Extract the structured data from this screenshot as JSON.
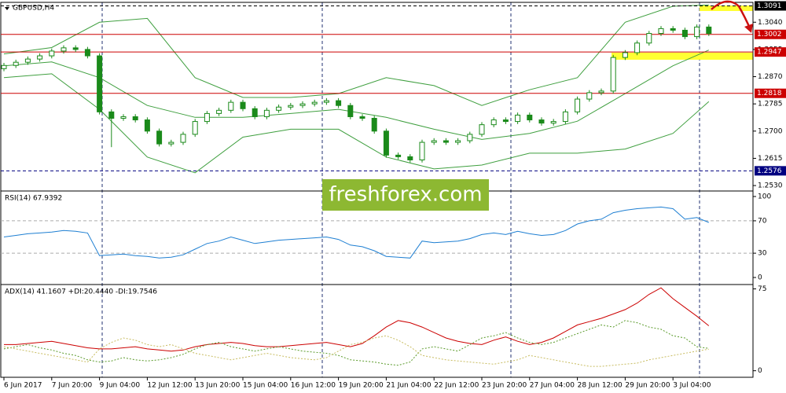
{
  "chart_data": [
    {
      "type": "candlestick",
      "title": "GBPUSD,H4",
      "categories": [
        "6 Jun 2017",
        null,
        null,
        null,
        "7 Jun 20:00",
        null,
        null,
        null,
        "9 Jun 04:00",
        null,
        null,
        null,
        "12 Jun 12:00",
        null,
        null,
        null,
        "13 Jun 20:00",
        null,
        null,
        null,
        "15 Jun 04:00",
        null,
        null,
        null,
        "16 Jun 12:00",
        null,
        null,
        null,
        "19 Jun 20:00",
        null,
        null,
        null,
        "21 Jun 04:00",
        null,
        null,
        null,
        "22 Jun 12:00",
        null,
        null,
        null,
        "23 Jun 20:00",
        null,
        null,
        null,
        "27 Jun 04:00",
        null,
        null,
        null,
        "28 Jun 12:00",
        null,
        null,
        null,
        "29 Jun 20:00",
        null,
        null,
        null,
        "3 Jul 04:00",
        null,
        null,
        null
      ],
      "open": [
        1.2895,
        1.2905,
        1.2915,
        1.2925,
        1.2935,
        1.295,
        1.296,
        1.2955,
        1.2935,
        1.276,
        1.274,
        1.2745,
        1.2735,
        1.27,
        1.266,
        1.2665,
        1.269,
        1.273,
        1.2755,
        1.2765,
        1.279,
        1.277,
        1.2745,
        1.2765,
        1.2775,
        1.278,
        1.2785,
        1.279,
        1.2795,
        1.278,
        1.2745,
        1.274,
        1.27,
        1.2625,
        1.262,
        1.261,
        1.2665,
        1.267,
        1.2665,
        1.267,
        1.269,
        1.272,
        1.2735,
        1.273,
        1.275,
        1.2735,
        1.2725,
        1.273,
        1.276,
        1.28,
        1.282,
        1.2825,
        1.293,
        1.2945,
        1.2975,
        1.3005,
        1.302,
        1.3015,
        1.2995,
        1.3025
      ],
      "high": [
        1.2913,
        1.2923,
        1.2933,
        1.2943,
        1.2958,
        1.2968,
        1.2968,
        1.2963,
        1.2943,
        1.2768,
        1.2753,
        1.2753,
        1.2743,
        1.2708,
        1.2673,
        1.2698,
        1.2738,
        1.2763,
        1.2773,
        1.2798,
        1.2798,
        1.2778,
        1.2773,
        1.2783,
        1.2788,
        1.2793,
        1.2798,
        1.2803,
        1.2803,
        1.2788,
        1.2753,
        1.2748,
        1.2708,
        1.2633,
        1.2628,
        1.2673,
        1.2678,
        1.2678,
        1.2678,
        1.2698,
        1.2728,
        1.2743,
        1.2743,
        1.2758,
        1.2758,
        1.2743,
        1.2738,
        1.2768,
        1.2808,
        1.2828,
        1.2833,
        1.2938,
        1.2953,
        1.2983,
        1.3013,
        1.3028,
        1.3028,
        1.3023,
        1.3033,
        1.3033
      ],
      "low": [
        1.2887,
        1.2897,
        1.2907,
        1.2917,
        1.2927,
        1.2942,
        1.2947,
        1.2927,
        1.2752,
        1.265,
        1.2732,
        1.2727,
        1.2692,
        1.2652,
        1.2652,
        1.2657,
        1.2682,
        1.2722,
        1.2747,
        1.2757,
        1.2762,
        1.2737,
        1.2737,
        1.2757,
        1.2767,
        1.2772,
        1.2777,
        1.2782,
        1.2772,
        1.2737,
        1.2732,
        1.2692,
        1.2617,
        1.2612,
        1.2602,
        1.2602,
        1.2657,
        1.2657,
        1.2657,
        1.2662,
        1.2682,
        1.2712,
        1.2722,
        1.2722,
        1.2727,
        1.2717,
        1.2717,
        1.2722,
        1.2752,
        1.2792,
        1.2812,
        1.2817,
        1.2922,
        1.2937,
        1.2967,
        1.2997,
        1.3007,
        1.2987,
        1.2987,
        1.2997
      ],
      "close": [
        1.2905,
        1.2915,
        1.2925,
        1.2935,
        1.295,
        1.296,
        1.2955,
        1.2935,
        1.276,
        1.274,
        1.2745,
        1.2735,
        1.27,
        1.266,
        1.2665,
        1.269,
        1.273,
        1.2755,
        1.2765,
        1.279,
        1.277,
        1.2745,
        1.2765,
        1.2775,
        1.278,
        1.2785,
        1.279,
        1.2795,
        1.278,
        1.2745,
        1.274,
        1.27,
        1.2625,
        1.262,
        1.261,
        1.2665,
        1.267,
        1.2665,
        1.267,
        1.269,
        1.272,
        1.2735,
        1.273,
        1.275,
        1.2735,
        1.2725,
        1.273,
        1.276,
        1.28,
        1.282,
        1.2825,
        1.293,
        1.2945,
        1.2975,
        1.3005,
        1.302,
        1.3015,
        1.2995,
        1.3025,
        1.3005
      ],
      "color": "#1a8a1a",
      "bands": {
        "color": "#3f9f3f",
        "x": [
          0,
          4,
          8,
          12,
          16,
          20,
          24,
          28,
          32,
          36,
          40,
          44,
          48,
          52,
          56,
          59
        ],
        "upper": [
          1.2941,
          1.2961,
          1.304,
          1.3052,
          1.2867,
          1.2805,
          1.2805,
          1.2817,
          1.2867,
          1.2842,
          1.278,
          1.2829,
          1.2867,
          1.304,
          1.309,
          1.3094
        ],
        "middle": [
          1.2904,
          1.2916,
          1.2867,
          1.278,
          1.2743,
          1.2743,
          1.2755,
          1.2768,
          1.2743,
          1.2706,
          1.2674,
          1.2693,
          1.2731,
          1.2817,
          1.2904,
          1.2953
        ],
        "lower": [
          1.2867,
          1.2879,
          1.2768,
          1.2619,
          1.257,
          1.2681,
          1.2706,
          1.2706,
          1.2619,
          1.2582,
          1.2594,
          1.2631,
          1.2631,
          1.2644,
          1.2693,
          1.2792
        ]
      },
      "levels": [
        1.3091,
        1.3002,
        1.2947,
        1.2818,
        1.2576
      ],
      "level_colors": [
        "#000000",
        "#cc0000",
        "#cc0000",
        "#cc0000",
        "#000080"
      ],
      "ylim": [
        1.2513,
        1.3102
      ],
      "yticks": [
        {
          "value": 1.304,
          "label": "1.3040"
        },
        1.2955,
        {
          "value": 1.287,
          "label": "1.2870"
        },
        1.2785,
        {
          "value": 1.27,
          "label": "1.2700"
        },
        1.2615,
        {
          "value": 1.253,
          "label": "1.2530"
        }
      ]
    },
    {
      "type": "line",
      "title": "RSI(14) 67.9392",
      "color": "#1e7fd2",
      "values": [
        50,
        52,
        54,
        55,
        56,
        58,
        57,
        55,
        27,
        28,
        29,
        27,
        26,
        24,
        25,
        28,
        35,
        42,
        45,
        50,
        46,
        42,
        44,
        46,
        47,
        48,
        49,
        50,
        47,
        40,
        38,
        33,
        26,
        25,
        24,
        45,
        43,
        44,
        45,
        48,
        53,
        55,
        53,
        57,
        54,
        52,
        53,
        58,
        66,
        70,
        72,
        80,
        83,
        85,
        86,
        87,
        85,
        72,
        74,
        67.9392
      ],
      "dashed_lines": [
        30,
        70
      ],
      "ylim": [
        -8.7,
        106.8
      ],
      "yticks": [
        0,
        30,
        70,
        100
      ]
    },
    {
      "type": "line",
      "title": "ADX(14) 41.1607 +DI:20.4440 -DI:19.7546",
      "series": [
        {
          "color": "#cc0000",
          "values": [
            24,
            24,
            25,
            26,
            27,
            25,
            23,
            21,
            20,
            20,
            21,
            22,
            20,
            19,
            18,
            19,
            22,
            24,
            25,
            26,
            25,
            23,
            22,
            22,
            23,
            24,
            25,
            26,
            24,
            22,
            25,
            32,
            40,
            46,
            44,
            40,
            35,
            30,
            27,
            25,
            24,
            28,
            31,
            27,
            24,
            26,
            30,
            36,
            42,
            45,
            48,
            52,
            56,
            62,
            70,
            76,
            66,
            58,
            50,
            41.1607
          ]
        },
        {
          "color": "#5a9a2a",
          "dashed": true,
          "values": [
            20,
            22,
            24,
            21,
            19,
            16,
            14,
            10,
            8,
            9,
            12,
            10,
            9,
            10,
            12,
            15,
            20,
            24,
            26,
            22,
            20,
            18,
            20,
            22,
            20,
            18,
            17,
            16,
            14,
            10,
            9,
            8,
            6,
            5,
            8,
            20,
            22,
            20,
            18,
            24,
            30,
            32,
            35,
            30,
            26,
            24,
            26,
            30,
            34,
            38,
            42,
            40,
            46,
            44,
            40,
            38,
            32,
            30,
            22,
            20.444
          ]
        },
        {
          "color": "#c8bc60",
          "dashed": true,
          "values": [
            22,
            20,
            18,
            16,
            14,
            12,
            10,
            8,
            20,
            26,
            30,
            28,
            24,
            22,
            24,
            20,
            16,
            14,
            12,
            10,
            12,
            14,
            16,
            14,
            12,
            11,
            10,
            12,
            18,
            24,
            26,
            30,
            32,
            28,
            22,
            14,
            12,
            10,
            9,
            8,
            7,
            6,
            8,
            10,
            14,
            12,
            10,
            8,
            6,
            4,
            4,
            5,
            6,
            7,
            10,
            12,
            14,
            16,
            18,
            19.7546
          ]
        }
      ],
      "ylim": [
        -6,
        79
      ],
      "yticks": [
        0,
        75
      ]
    }
  ],
  "watermark": "freshforex.com"
}
